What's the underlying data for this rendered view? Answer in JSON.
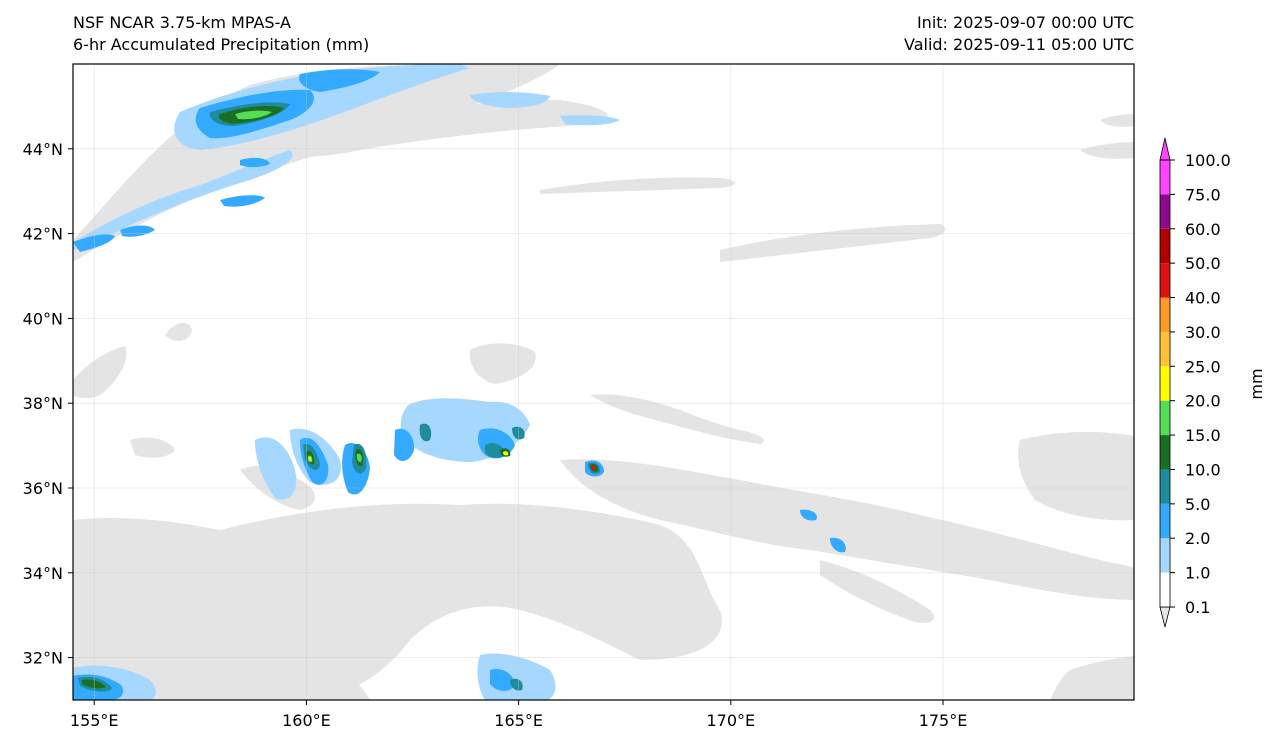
{
  "header": {
    "model_title": "NSF NCAR 3.75-km MPAS-A",
    "field_title": "6-hr Accumulated Precipitation (mm)",
    "init": "Init: 2025-09-07 00:00 UTC",
    "valid": "Valid: 2025-09-11 05:00 UTC"
  },
  "map": {
    "lon_range": [
      154.5,
      179.5
    ],
    "lat_range": [
      31.0,
      46.0
    ],
    "lon_ticks": [
      155,
      160,
      165,
      170,
      175
    ],
    "lon_tick_labels": [
      "155°E",
      "160°E",
      "165°E",
      "170°E",
      "175°E"
    ],
    "lat_ticks": [
      32,
      34,
      36,
      38,
      40,
      42,
      44
    ],
    "lat_tick_labels": [
      "32°N",
      "34°N",
      "36°N",
      "38°N",
      "40°N",
      "42°N",
      "44°N"
    ],
    "gridlines": true
  },
  "colorbar": {
    "unit_label": "mm",
    "levels": [
      "0.1",
      "1.0",
      "2.0",
      "5.0",
      "10.0",
      "15.0",
      "20.0",
      "25.0",
      "30.0",
      "40.0",
      "50.0",
      "60.0",
      "75.0",
      "100.0"
    ],
    "colors": [
      "#e6e6e6",
      "#ffffff",
      "#a6d8ff",
      "#33a9ff",
      "#1e8c9a",
      "#1b6f24",
      "#55dd55",
      "#ffff00",
      "#ffc23a",
      "#ff9a28",
      "#dd1111",
      "#b00000",
      "#8a0c8c",
      "#ff44ff"
    ],
    "extend": "both"
  },
  "colors": {
    "trace": "#e4e4e4",
    "light_blue": "#a6d8ff",
    "blue": "#33a9ff",
    "teal": "#1e8c9a",
    "dark_green": "#1b6f24",
    "light_green": "#55dd55",
    "yellow": "#ffff00",
    "red": "#dd1111"
  }
}
